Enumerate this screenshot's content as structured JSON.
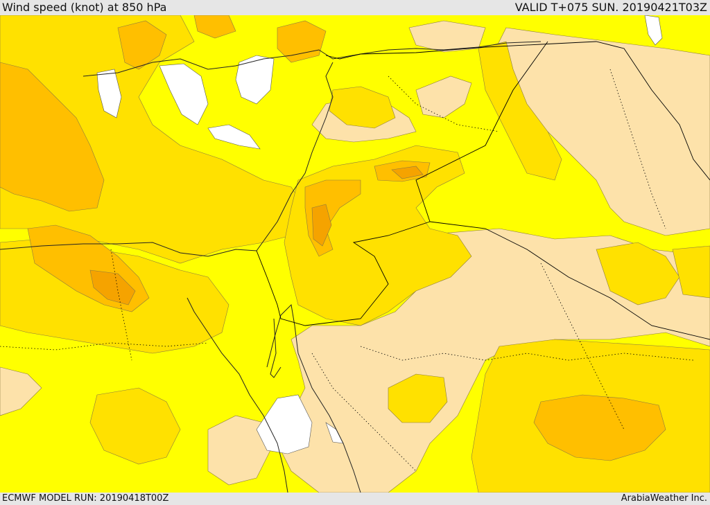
{
  "header": {
    "title": "Wind speed (knot) at 850 hPa",
    "valid": "VALID T+075 SUN. 20190421T03Z"
  },
  "footer": {
    "model_run": "ECMWF MODEL RUN: 20190418T00Z",
    "credit": "ArabiaWeather Inc."
  },
  "colors": {
    "calm": "#ffffff",
    "light": "#fde2aa",
    "moderate": "#ffff00",
    "fresh": "#ffe100",
    "strong": "#ffbf00",
    "very_strong": "#f5a300",
    "coastline": "#333333",
    "border": "#000000"
  }
}
